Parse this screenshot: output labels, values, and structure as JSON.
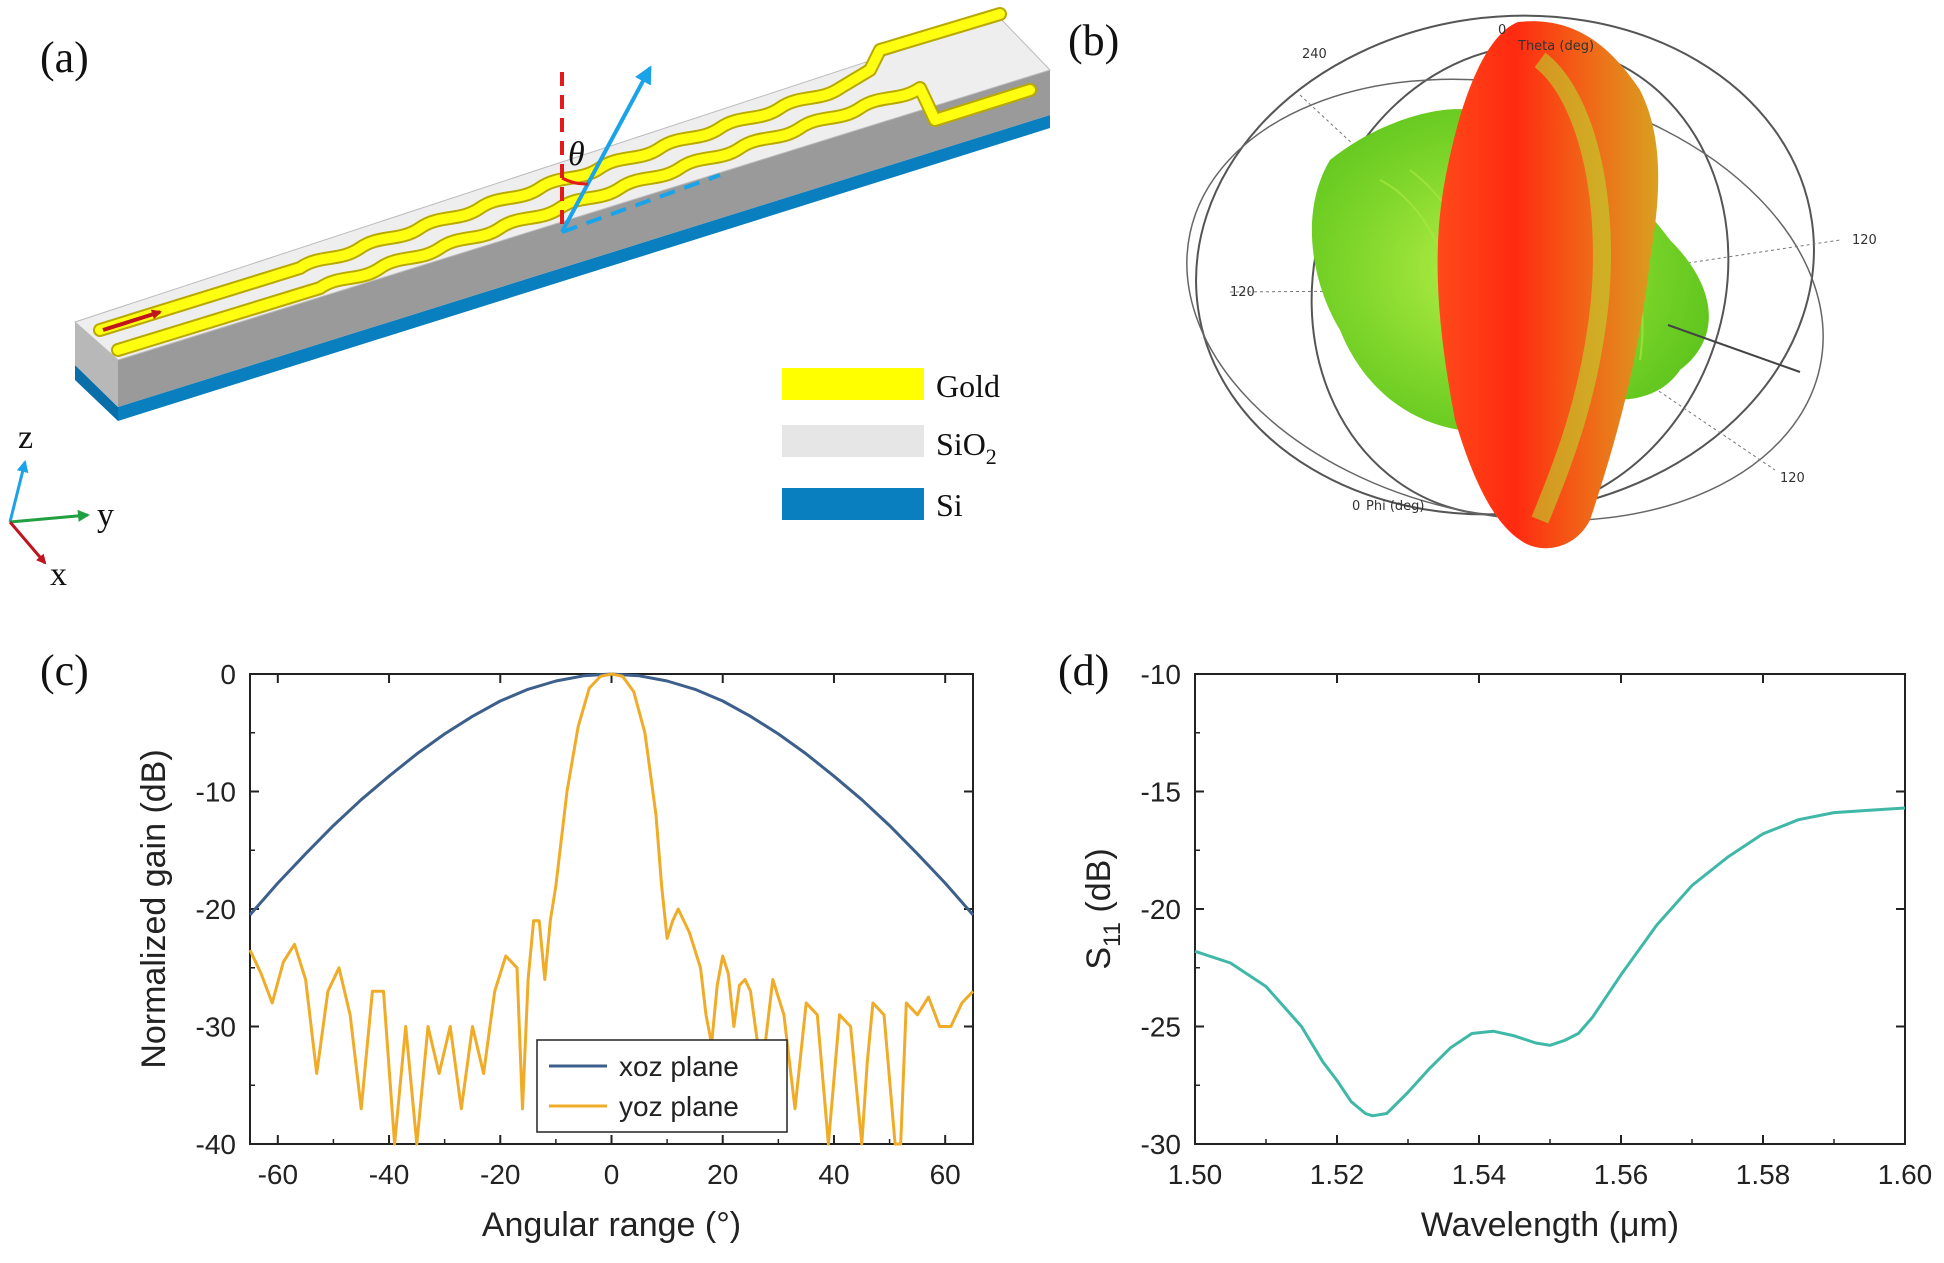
{
  "panels": {
    "a": {
      "label": "(a)",
      "theta_symbol": "θ",
      "axes": {
        "z": "z",
        "y": "y",
        "x": "x"
      },
      "legend": [
        {
          "name": "Gold",
          "sub": "",
          "color": "#ffff00"
        },
        {
          "name": "SiO",
          "sub": "2",
          "color": "#e6e6e6"
        },
        {
          "name": "Si",
          "sub": "",
          "color": "#0a7fc0"
        }
      ]
    },
    "b": {
      "label": "(b)",
      "ring_labels": {
        "top_zero": "0",
        "theta_title": "Theta (deg)",
        "top_240": "240",
        "right_120": "120",
        "left_120": "120",
        "bottom_120": "120",
        "phi_zero": "0",
        "phi_title": "Phi (deg)"
      }
    },
    "c": {
      "label": "(c)"
    },
    "d": {
      "label": "(d)"
    }
  },
  "chart_data": [
    {
      "id": "c",
      "type": "line",
      "title": "",
      "xlabel": "Angular range (°)",
      "ylabel": "Normalized gain (dB)",
      "xlim": [
        -65,
        65
      ],
      "ylim": [
        -40,
        0
      ],
      "xticks": [
        -60,
        -40,
        -20,
        0,
        20,
        40,
        60
      ],
      "yticks": [
        0,
        -10,
        -20,
        -30,
        -40
      ],
      "legend_position": "bottom-center",
      "series": [
        {
          "name": "xoz plane",
          "color": "#3d5f8c",
          "x": [
            -65,
            -60,
            -55,
            -50,
            -45,
            -40,
            -35,
            -30,
            -25,
            -20,
            -15,
            -10,
            -5,
            0,
            5,
            10,
            15,
            20,
            25,
            30,
            35,
            40,
            45,
            50,
            55,
            60,
            65
          ],
          "y": [
            -20.5,
            -17.8,
            -15.3,
            -12.9,
            -10.7,
            -8.7,
            -6.8,
            -5.1,
            -3.6,
            -2.3,
            -1.3,
            -0.6,
            -0.15,
            0,
            -0.15,
            -0.6,
            -1.3,
            -2.3,
            -3.6,
            -5.1,
            -6.8,
            -8.7,
            -10.7,
            -12.9,
            -15.3,
            -17.8,
            -20.5
          ]
        },
        {
          "name": "yoz plane",
          "color": "#f0ac28",
          "x": [
            -65,
            -63,
            -61,
            -59,
            -57,
            -55,
            -53,
            -51,
            -49,
            -47,
            -45,
            -43,
            -41,
            -39,
            -37,
            -35,
            -33,
            -31,
            -29,
            -27,
            -25,
            -23,
            -21,
            -19,
            -17,
            -16,
            -15,
            -14,
            -13,
            -12,
            -11,
            -10,
            -8,
            -6,
            -4,
            -2,
            0,
            2,
            4,
            6,
            8,
            9,
            10,
            11,
            12,
            14,
            16,
            17,
            18,
            19,
            20,
            21,
            22,
            23,
            24,
            25,
            27,
            29,
            31,
            33,
            35,
            37,
            39,
            41,
            43,
            45,
            46,
            47,
            49,
            51,
            52,
            53,
            55,
            57,
            59,
            61,
            63,
            65
          ],
          "y": [
            -23.5,
            -25.5,
            -28,
            -24.5,
            -23.0,
            -26,
            -34,
            -27,
            -25,
            -29,
            -37,
            -27,
            -27,
            -40,
            -30,
            -40,
            -30,
            -34,
            -30,
            -37,
            -30,
            -34,
            -27,
            -24,
            -25,
            -37,
            -26,
            -21,
            -21,
            -26,
            -21,
            -18,
            -10,
            -4.5,
            -1.2,
            -0.2,
            0,
            -0.2,
            -1.5,
            -5,
            -12,
            -18,
            -22.5,
            -21,
            -20,
            -22,
            -25,
            -29,
            -31.5,
            -26.5,
            -24,
            -25.5,
            -30,
            -26.5,
            -26,
            -27,
            -34,
            -26,
            -29,
            -37,
            -28,
            -29,
            -40,
            -29,
            -30,
            -40,
            -33,
            -28,
            -29,
            -40,
            -40,
            -28,
            -29,
            -27.5,
            -30,
            -30,
            -28,
            -27
          ]
        }
      ]
    },
    {
      "id": "d",
      "type": "line",
      "title": "",
      "xlabel": "Wavelength (μm)",
      "ylabel_main": "S",
      "ylabel_sub": "11",
      "ylabel_unit": " (dB)",
      "xlim": [
        1.5,
        1.6
      ],
      "ylim": [
        -30,
        -10
      ],
      "xticks": [
        "1.50",
        "1.52",
        "1.54",
        "1.56",
        "1.58",
        "1.60"
      ],
      "yticks": [
        -10,
        -15,
        -20,
        -25,
        -30
      ],
      "series": [
        {
          "name": "S11",
          "color": "#3fb8a8",
          "x": [
            1.5,
            1.505,
            1.51,
            1.515,
            1.518,
            1.52,
            1.522,
            1.524,
            1.525,
            1.527,
            1.53,
            1.533,
            1.536,
            1.539,
            1.542,
            1.545,
            1.548,
            1.55,
            1.552,
            1.554,
            1.556,
            1.56,
            1.565,
            1.57,
            1.575,
            1.58,
            1.585,
            1.59,
            1.595,
            1.6
          ],
          "y": [
            -21.8,
            -22.3,
            -23.3,
            -25.0,
            -26.5,
            -27.3,
            -28.2,
            -28.7,
            -28.8,
            -28.7,
            -27.8,
            -26.8,
            -25.9,
            -25.3,
            -25.2,
            -25.4,
            -25.7,
            -25.8,
            -25.6,
            -25.3,
            -24.6,
            -22.8,
            -20.7,
            -19.0,
            -17.8,
            -16.8,
            -16.2,
            -15.9,
            -15.8,
            -15.7
          ]
        }
      ]
    }
  ]
}
